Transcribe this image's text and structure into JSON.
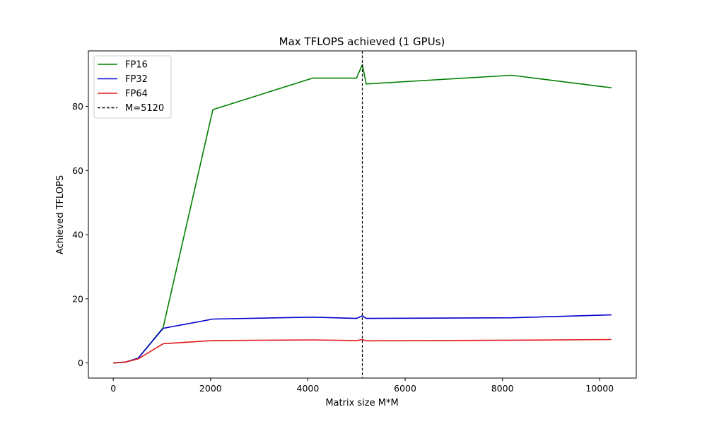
{
  "chart_data": {
    "type": "line",
    "title": "Max TFLOPS achieved (1 GPUs)",
    "xlabel": "Matrix size M*M",
    "ylabel": "Achieved TFLOPS",
    "xlim": [
      -512,
      10752
    ],
    "ylim": [
      -4.7,
      97.3
    ],
    "x_ticks": [
      0,
      2000,
      4000,
      6000,
      8000,
      10000
    ],
    "y_ticks": [
      0,
      20,
      40,
      60,
      80
    ],
    "grid": false,
    "legend_position": "upper left",
    "series": [
      {
        "name": "FP16",
        "color": "#008000",
        "x": [
          0,
          256,
          512,
          1024,
          2048,
          4096,
          5000,
          5120,
          5200,
          8192,
          10240
        ],
        "y": [
          0,
          0.3,
          1.5,
          11,
          79,
          88.8,
          88.8,
          93,
          87,
          89.7,
          85.8
        ]
      },
      {
        "name": "FP32",
        "color": "#0000cd",
        "x": [
          0,
          256,
          512,
          1024,
          2048,
          4096,
          5000,
          5120,
          5200,
          8192,
          10240
        ],
        "y": [
          0,
          0.3,
          1.5,
          10.8,
          13.7,
          14.3,
          13.9,
          14.7,
          13.9,
          14.1,
          15
        ]
      },
      {
        "name": "FP64",
        "color": "#e31a1c",
        "x": [
          0,
          256,
          512,
          1024,
          2048,
          4096,
          5000,
          5120,
          5200,
          8192,
          10240
        ],
        "y": [
          0,
          0.3,
          1.3,
          6,
          7,
          7.2,
          7,
          7.3,
          6.9,
          7.1,
          7.3
        ]
      }
    ],
    "vlines": [
      {
        "name": "M=5120",
        "x": 5120,
        "color": "#000000",
        "style": "dashed"
      }
    ]
  }
}
